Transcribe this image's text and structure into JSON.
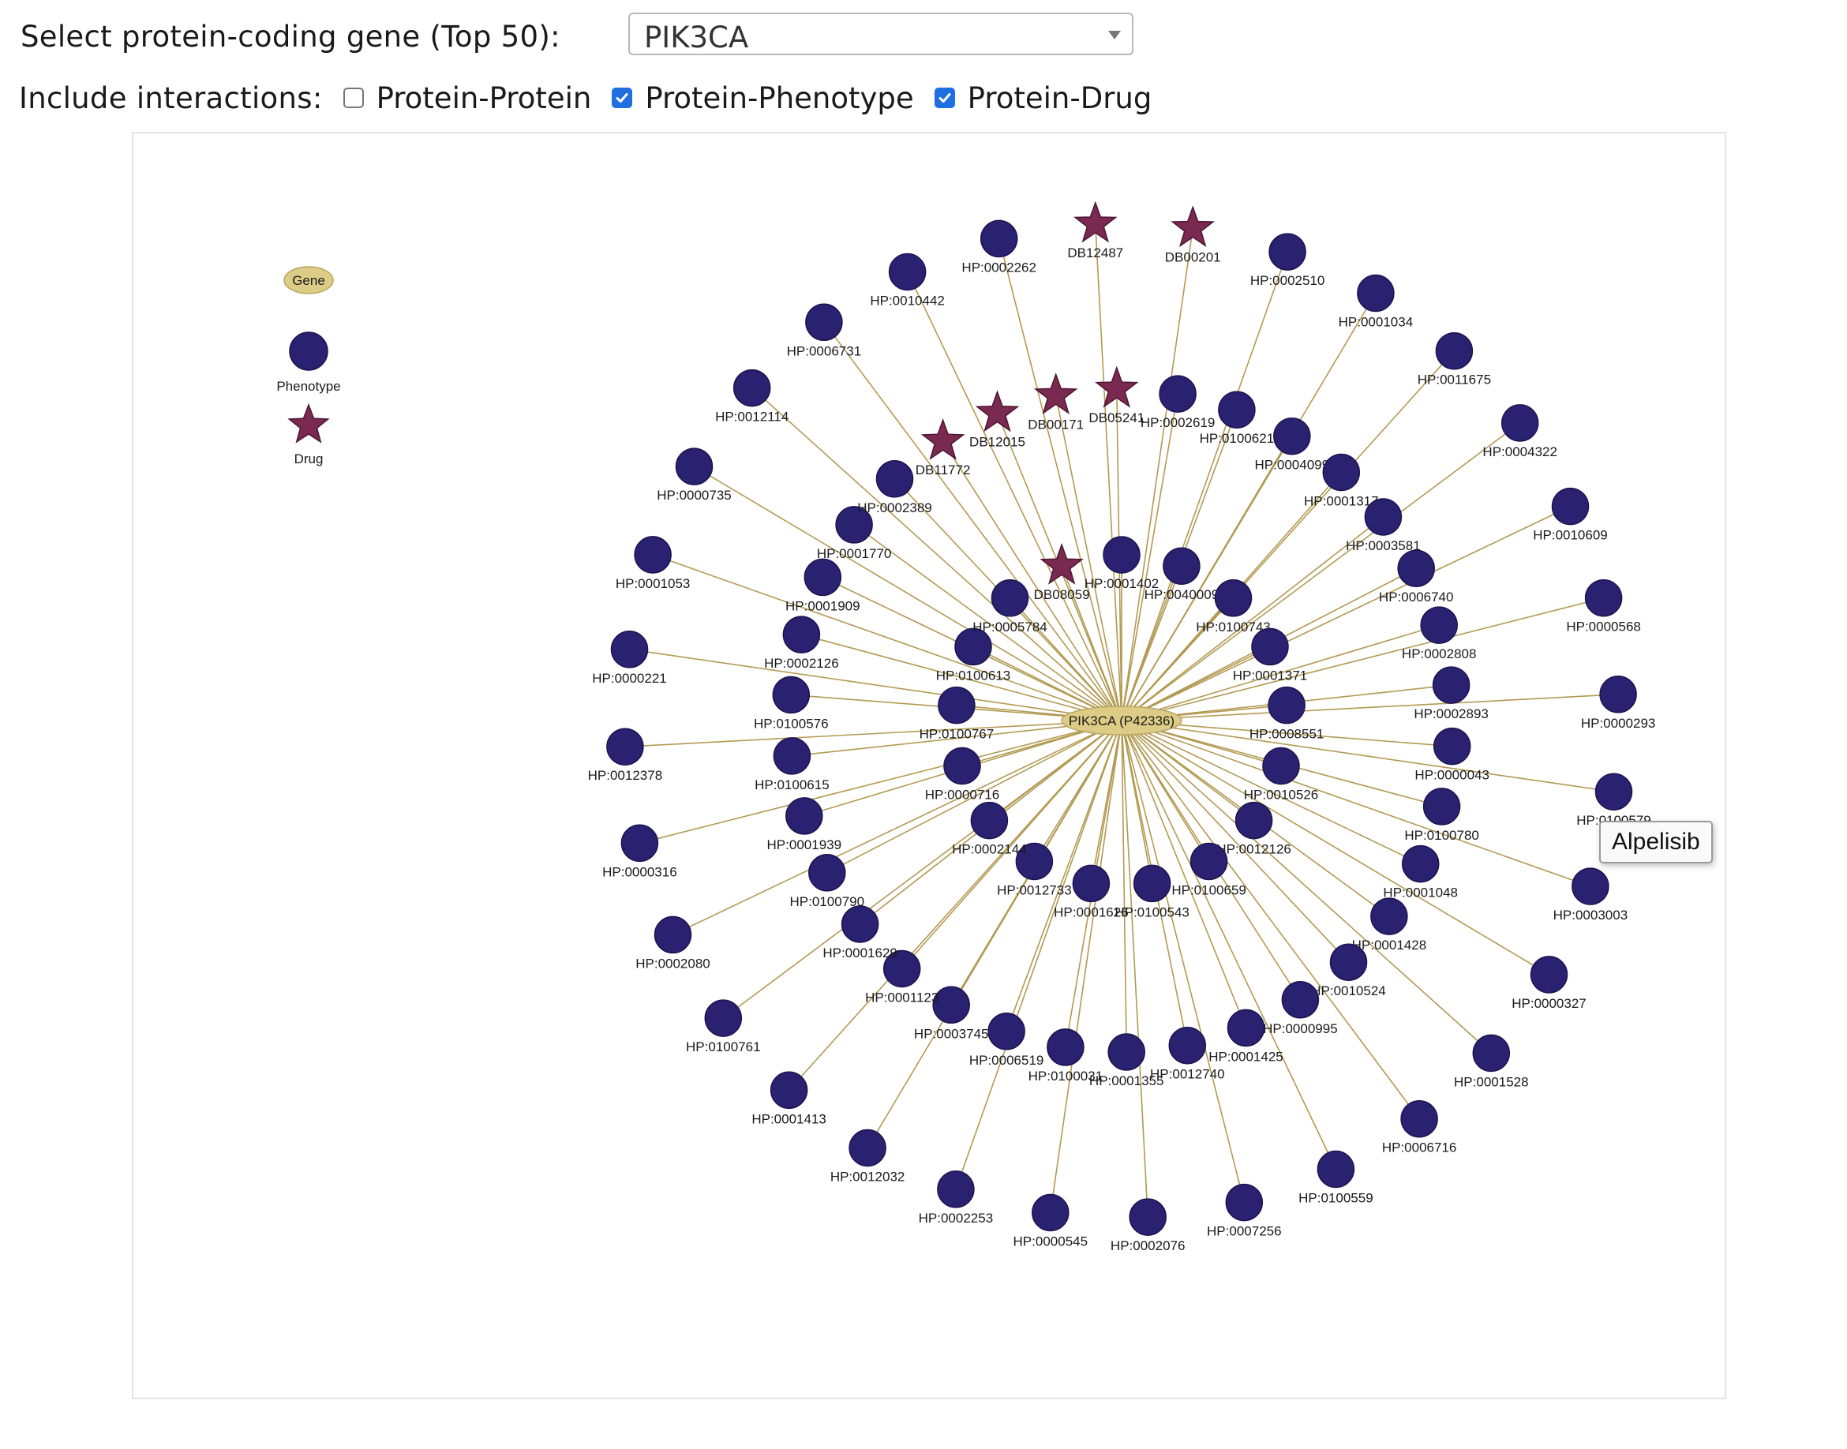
{
  "controls": {
    "gene_select_label": "Select protein-coding gene (Top 50):",
    "gene_select_value": "PIK3CA",
    "interactions_label": "Include interactions:",
    "options": [
      {
        "label": "Protein-Protein",
        "checked": false
      },
      {
        "label": "Protein-Phenotype",
        "checked": true
      },
      {
        "label": "Protein-Drug",
        "checked": true
      }
    ]
  },
  "legend": {
    "gene": "Gene",
    "phenotype": "Phenotype",
    "drug": "Drug"
  },
  "colors": {
    "gene_fill": "#dccc85",
    "phenotype_fill": "#2b2171",
    "drug_fill": "#7a2950",
    "edge": "#b39a52",
    "checkbox_checked": "#1f6fe0"
  },
  "center_node": {
    "label": "PIK3CA (P42336)"
  },
  "tooltip": {
    "text": "Alpelisib"
  },
  "rings": [
    [
      "HP:0001402",
      "HP:0040009",
      "HP:0100743",
      "HP:0001371",
      "HP:0008551",
      "HP:0010526",
      "HP:0012126",
      "HP:0100659",
      "HP:0100543",
      "HP:0001626",
      "HP:0012733",
      "HP:0002144",
      "HP:0000716",
      "HP:0100767",
      "HP:0100613",
      "HP:0005784",
      "DB08059"
    ],
    [
      "HP:0002619",
      "HP:0100621",
      "HP:0004099",
      "HP:0001317",
      "HP:0003581",
      "HP:0006740",
      "HP:0002808",
      "HP:0002893",
      "HP:0000043",
      "HP:0100780",
      "HP:0001048",
      "HP:0001428",
      "HP:0010524",
      "HP:0000995",
      "HP:0001425",
      "HP:0012740",
      "HP:0001355",
      "HP:0100031",
      "HP:0006519",
      "HP:0003745",
      "HP:0001123",
      "HP:0001629",
      "HP:0100790",
      "HP:0001939",
      "HP:0100615",
      "HP:0100576",
      "HP:0002126",
      "HP:0001909",
      "HP:0001770",
      "HP:0002389",
      "DB11772",
      "DB12015",
      "DB00171",
      "DB05241"
    ],
    [
      "HP:0002510",
      "HP:0001034",
      "HP:0011675",
      "HP:0004322",
      "HP:0010609",
      "HP:0000568",
      "HP:0000293",
      "HP:0100579",
      "HP:0003003",
      "HP:0000327",
      "HP:0001528",
      "HP:0006716",
      "HP:0100559",
      "HP:0007256",
      "HP:0002076",
      "HP:0000545",
      "HP:0002253",
      "HP:0012032",
      "HP:0001413",
      "HP:0100761",
      "HP:0002080",
      "HP:0000316",
      "HP:0012378",
      "HP:0000221",
      "HP:0001053",
      "HP:0000735",
      "HP:0012114",
      "HP:0006731",
      "HP:0010442",
      "HP:0002262",
      "DB12487",
      "DB00201"
    ]
  ]
}
